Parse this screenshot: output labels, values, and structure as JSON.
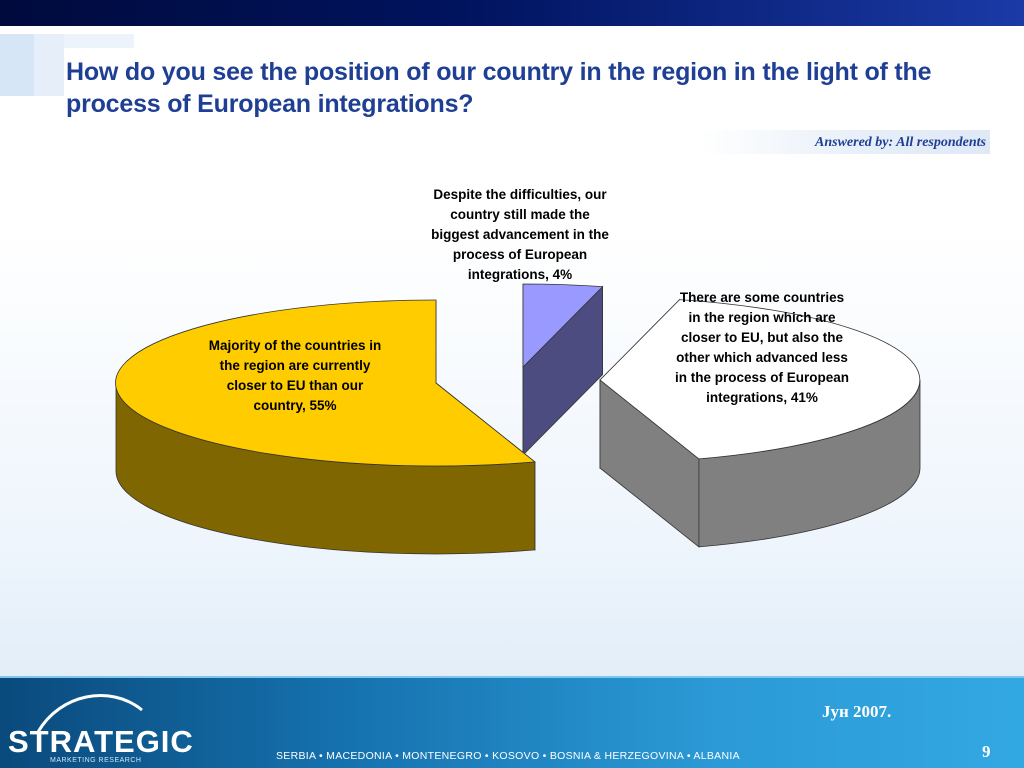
{
  "slide": {
    "title": "How do you see the position of our country in the region in the light of the process of European integrations?",
    "answered_by": "Answered by: All respondents",
    "footer_countries": "SERBIA  •  MACEDONIA  •  MONTENEGRO  •  KOSOVO  •  BOSNIA & HERZEGOVINA  •  ALBANIA",
    "date": "Јун 2007.",
    "page_number": "9",
    "logo": {
      "name": "STRATEGIC",
      "tagline": "MARKETING RESEARCH"
    }
  },
  "colors": {
    "title": "#1f3f95",
    "slice_majority_top": "#ffcc00",
    "slice_majority_side": "#7f6600",
    "slice_advancement_top": "#9999ff",
    "slice_advancement_side": "#4c4c80",
    "slice_some_top": "#ffffff",
    "slice_some_side": "#808080"
  },
  "chart_data": {
    "type": "pie",
    "style": "3d-exploded",
    "start_angle_deg": 270,
    "categories": [
      "Despite the difficulties, our country still made the biggest advancement in the process of European integrations",
      "There are some countries in the region which are closer to EU, but also the other which advanced less in the process of European integrations",
      "Majority of the countries in the region are currently closer to EU than our country"
    ],
    "values": [
      4,
      41,
      55
    ],
    "labels": [
      "Despite the difficulties, our country still made the biggest advancement in the process of European integrations, 4%",
      "There are some countries in the region which are closer to EU, but also the other which advanced less in the process of European integrations, 41%",
      "Majority of the countries in the region are currently closer to EU than our country, 55%"
    ]
  }
}
